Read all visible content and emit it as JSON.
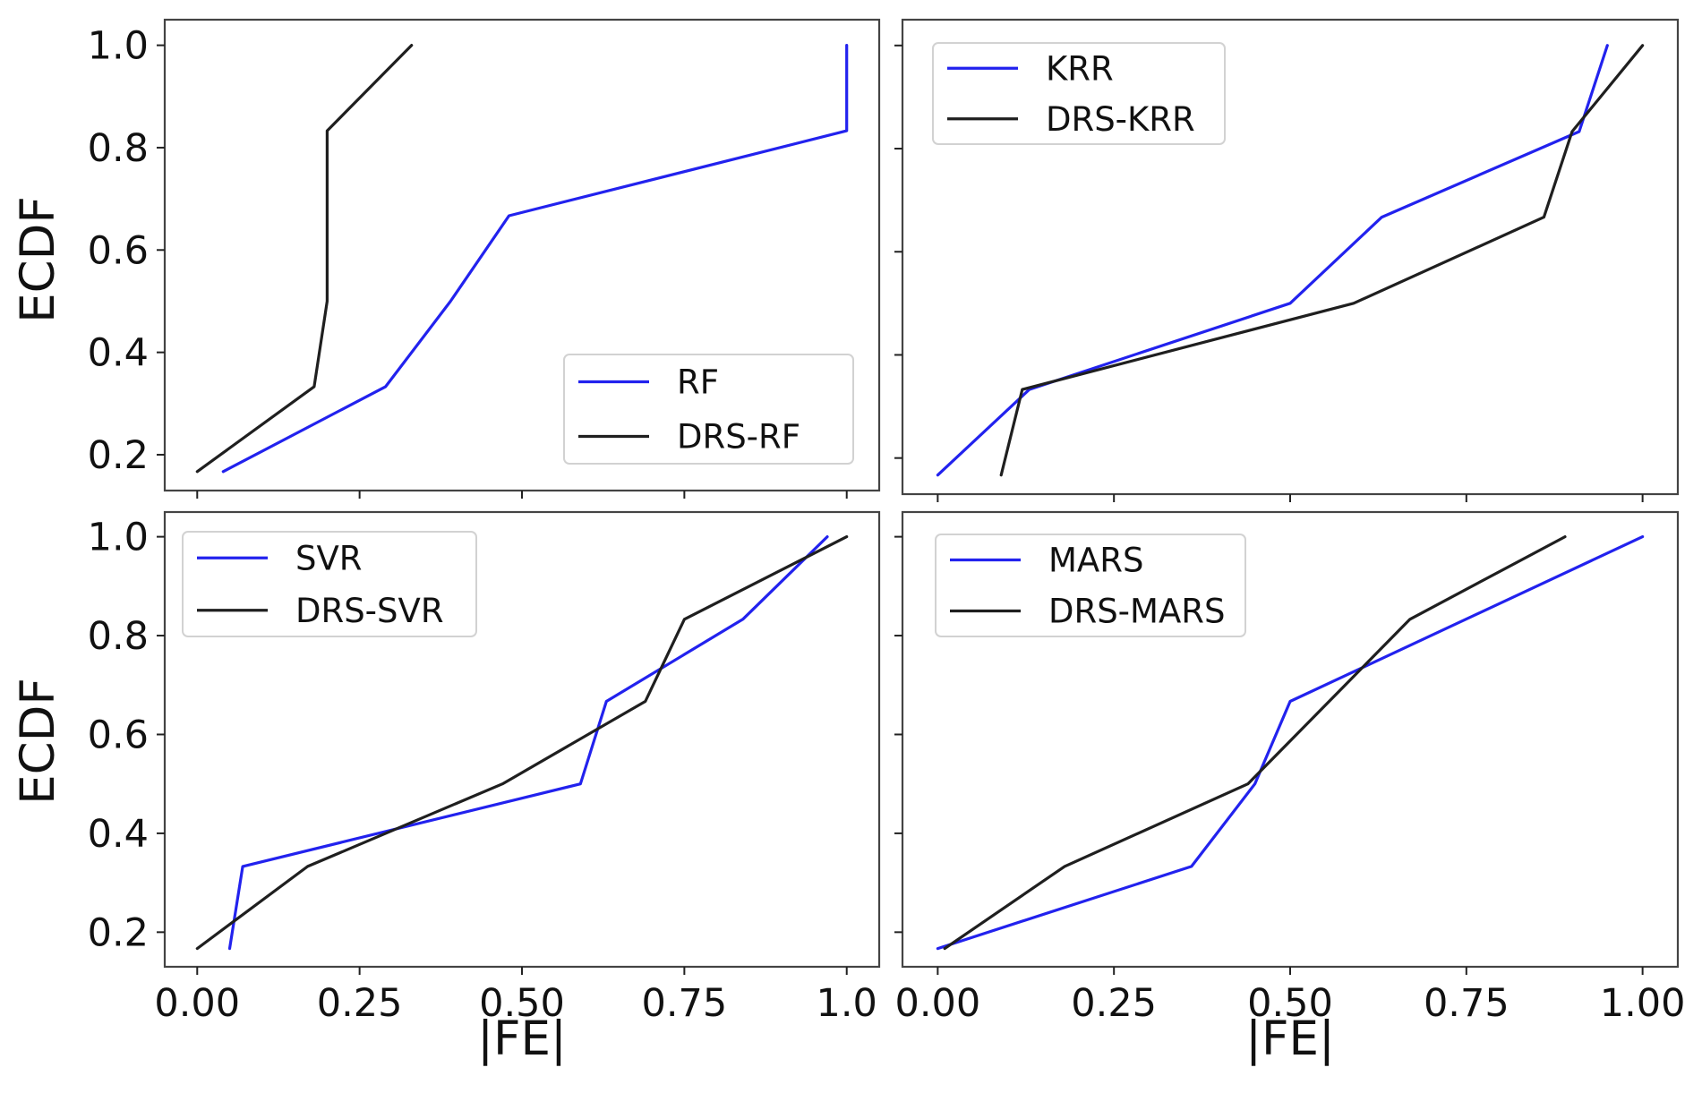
{
  "chart_data": [
    {
      "type": "line",
      "panel": "top-left",
      "xlabel": "",
      "ylabel": "ECDF",
      "xlim": [
        -0.05,
        1.05
      ],
      "ylim": [
        0.13,
        1.05
      ],
      "xticks": [
        0.0,
        0.25,
        0.5,
        0.75,
        1.0
      ],
      "xtick_labels": [],
      "yticks": [
        0.2,
        0.4,
        0.6,
        0.8,
        1.0
      ],
      "ytick_labels": [
        "0.2",
        "0.4",
        "0.6",
        "0.8",
        "1.0"
      ],
      "legend_position": "lower-right",
      "series": [
        {
          "name": "RF",
          "color": "#2222ee",
          "x": [
            0.04,
            0.29,
            0.39,
            0.48,
            1.0,
            1.0
          ],
          "y": [
            0.167,
            0.333,
            0.5,
            0.667,
            0.833,
            1.0
          ]
        },
        {
          "name": "DRS-RF",
          "color": "#1f1f1f",
          "x": [
            0.0,
            0.18,
            0.2,
            0.2,
            0.33
          ],
          "y": [
            0.167,
            0.333,
            0.5,
            0.833,
            1.0
          ]
        }
      ]
    },
    {
      "type": "line",
      "panel": "top-right",
      "xlabel": "",
      "ylabel": "",
      "xlim": [
        -0.05,
        1.05
      ],
      "ylim": [
        0.13,
        1.05
      ],
      "xticks": [
        0.0,
        0.25,
        0.5,
        0.75,
        1.0
      ],
      "xtick_labels": [],
      "yticks": [
        0.2,
        0.4,
        0.6,
        0.8,
        1.0
      ],
      "ytick_labels": [],
      "legend_position": "top-left",
      "series": [
        {
          "name": "KRR",
          "color": "#2222ee",
          "x": [
            0.0,
            0.13,
            0.5,
            0.63,
            0.91,
            0.95
          ],
          "y": [
            0.167,
            0.333,
            0.5,
            0.667,
            0.833,
            1.0
          ]
        },
        {
          "name": "DRS-KRR",
          "color": "#1f1f1f",
          "x": [
            0.09,
            0.12,
            0.59,
            0.86,
            0.9,
            1.0
          ],
          "y": [
            0.167,
            0.333,
            0.5,
            0.667,
            0.833,
            1.0
          ]
        }
      ]
    },
    {
      "type": "line",
      "panel": "bottom-left",
      "xlabel": "|FE|",
      "ylabel": "ECDF",
      "xlim": [
        -0.05,
        1.05
      ],
      "ylim": [
        0.13,
        1.05
      ],
      "xticks": [
        0.0,
        0.25,
        0.5,
        0.75,
        1.0
      ],
      "xtick_labels": [
        "0.00",
        "0.25",
        "0.50",
        "0.75",
        "1.0"
      ],
      "yticks": [
        0.2,
        0.4,
        0.6,
        0.8,
        1.0
      ],
      "ytick_labels": [
        "0.2",
        "0.4",
        "0.6",
        "0.8",
        "1.0"
      ],
      "legend_position": "top-left",
      "series": [
        {
          "name": "SVR",
          "color": "#2222ee",
          "x": [
            0.05,
            0.07,
            0.59,
            0.63,
            0.84,
            0.97
          ],
          "y": [
            0.167,
            0.333,
            0.5,
            0.667,
            0.833,
            1.0
          ]
        },
        {
          "name": "DRS-SVR",
          "color": "#1f1f1f",
          "x": [
            0.0,
            0.17,
            0.47,
            0.69,
            0.75,
            1.0
          ],
          "y": [
            0.167,
            0.333,
            0.5,
            0.667,
            0.833,
            1.0
          ]
        }
      ]
    },
    {
      "type": "line",
      "panel": "bottom-right",
      "xlabel": "|FE|",
      "ylabel": "",
      "xlim": [
        -0.05,
        1.05
      ],
      "ylim": [
        0.13,
        1.05
      ],
      "xticks": [
        0.0,
        0.25,
        0.5,
        0.75,
        1.0
      ],
      "xtick_labels": [
        "0.00",
        "0.25",
        "0.50",
        "0.75",
        "1.00"
      ],
      "yticks": [
        0.2,
        0.4,
        0.6,
        0.8,
        1.0
      ],
      "ytick_labels": [],
      "legend_position": "top-left",
      "series": [
        {
          "name": "MARS",
          "color": "#2222ee",
          "x": [
            0.0,
            0.36,
            0.45,
            0.5,
            1.0
          ],
          "y": [
            0.167,
            0.333,
            0.5,
            0.667,
            1.0
          ]
        },
        {
          "name": "DRS-MARS",
          "color": "#1f1f1f",
          "x": [
            0.01,
            0.18,
            0.44,
            0.67,
            0.89
          ],
          "y": [
            0.167,
            0.333,
            0.5,
            0.833,
            1.0
          ]
        }
      ]
    }
  ]
}
